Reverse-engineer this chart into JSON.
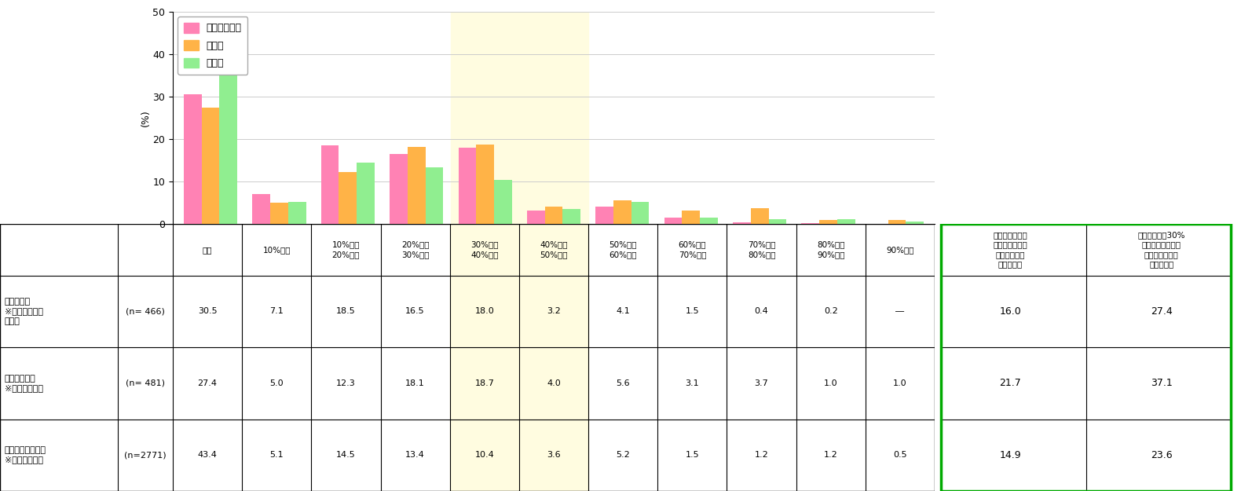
{
  "series1_label": "経営者・役員",
  "series2_label": "組織長",
  "series3_label": "就業者",
  "series1_color": "#FF82B4",
  "series2_color": "#FFB347",
  "series3_color": "#90EE90",
  "series1_values": [
    30.5,
    7.1,
    18.5,
    16.5,
    18.0,
    3.2,
    4.1,
    1.5,
    0.4,
    0.2,
    0.0
  ],
  "series2_values": [
    27.4,
    5.0,
    12.3,
    18.1,
    18.7,
    4.0,
    5.6,
    3.1,
    3.7,
    1.0,
    1.0
  ],
  "series3_values": [
    43.4,
    5.1,
    14.5,
    13.4,
    10.4,
    3.6,
    5.2,
    1.5,
    1.2,
    1.2,
    0.5
  ],
  "ylim": [
    0,
    50
  ],
  "yticks": [
    0,
    10,
    20,
    30,
    40,
    50
  ],
  "ylabel": "(%)",
  "highlight_indices": [
    4,
    5
  ],
  "cat_labels": [
    "ゼロ",
    "10%未満",
    "10%以上\n20%未満",
    "20%以上\n30%未満",
    "30%以上\n40%未満",
    "40%以上\n50%未満",
    "50%以上\n60%未満",
    "60%以上\n70%未満",
    "70%以上\n80%未満",
    "80%以上\n90%未満",
    "90%以上"
  ],
  "row_labels": [
    "自社のムダ\n※経営者・役員\nが回答",
    "自組織のムダ\n※組織長が回答",
    "自分の業務のムダ\n※就業者が回答"
  ],
  "row_n": [
    "(n= 466)",
    "(n= 481)",
    "(n=2771)"
  ],
  "table_data": [
    [
      "30.5",
      "7.1",
      "18.5",
      "16.5",
      "18.0",
      "3.2",
      "4.1",
      "1.5",
      "0.4",
      "0.2",
      "―"
    ],
    [
      "27.4",
      "5.0",
      "12.3",
      "18.1",
      "18.7",
      "4.0",
      "5.6",
      "3.1",
      "3.7",
      "1.0",
      "1.0"
    ],
    [
      "43.4",
      "5.1",
      "14.5",
      "13.4",
      "10.4",
      "3.6",
      "5.2",
      "1.5",
      "1.2",
      "1.2",
      "0.5"
    ]
  ],
  "summary_col1_header": "全業務のうちム\nダだと感じてい\nる業務の割合\n（平均値）",
  "summary_col2_header": "全業務のうっ30%\n以上ムダだと感じ\nている方の割合\n（平均値）",
  "summary_values": [
    [
      "16.0",
      "27.4"
    ],
    [
      "21.7",
      "37.1"
    ],
    [
      "14.9",
      "23.6"
    ]
  ],
  "highlight_bg": "#FFFCE0",
  "summary_border_color": "#00AA00"
}
